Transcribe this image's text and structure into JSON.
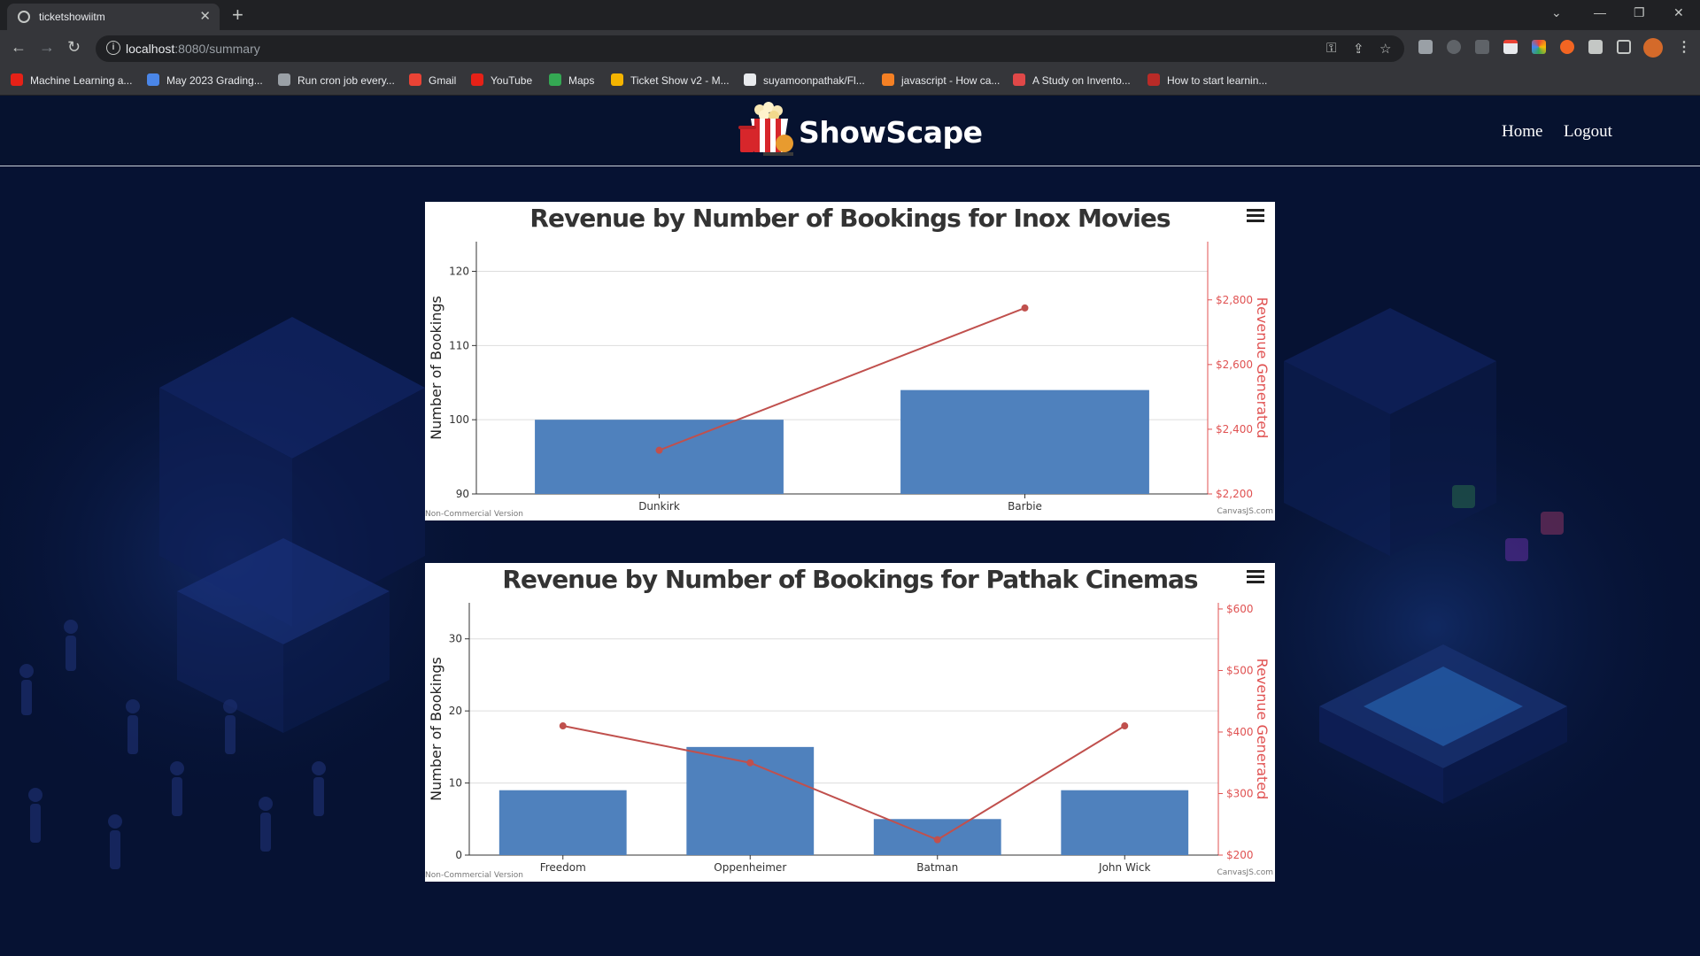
{
  "browser": {
    "tab_title": "ticketshowiitm",
    "url_host": "localhost",
    "url_rest": ":8080/summary",
    "bookmarks": [
      {
        "label": "Machine Learning a...",
        "color": "#e62117"
      },
      {
        "label": "May 2023 Grading...",
        "color": "#4a86e8"
      },
      {
        "label": "Run cron job every...",
        "color": "#9aa0a6"
      },
      {
        "label": "Gmail",
        "color": "#ea4335"
      },
      {
        "label": "YouTube",
        "color": "#e62117"
      },
      {
        "label": "Maps",
        "color": "#34a853"
      },
      {
        "label": "Ticket Show v2 - M...",
        "color": "#f4b400"
      },
      {
        "label": "suyamoonpathak/Fl...",
        "color": "#e8eaed"
      },
      {
        "label": "javascript - How ca...",
        "color": "#f48024"
      },
      {
        "label": "A Study on Invento...",
        "color": "#e04848"
      },
      {
        "label": "How to start learnin...",
        "color": "#b92b27"
      }
    ]
  },
  "site": {
    "brand": "ShowScape",
    "nav": {
      "home": "Home",
      "logout": "Logout"
    }
  },
  "chart_data": [
    {
      "type": "bar",
      "title": "Revenue by Number of Bookings for Inox Movies",
      "categories": [
        "Dunkirk",
        "Barbie"
      ],
      "series": [
        {
          "type": "bar",
          "axis": "left",
          "values": [
            100,
            104
          ]
        },
        {
          "type": "line",
          "axis": "right",
          "values": [
            2335,
            2775
          ]
        }
      ],
      "ylabel": "Number of Bookings",
      "ylabel_right": "Revenue Generated",
      "ylim": [
        90,
        124
      ],
      "yticks": [
        90,
        100,
        110,
        120
      ],
      "ylim_right": [
        2200,
        2980
      ],
      "yticks_right": [
        2200,
        2400,
        2600,
        2800
      ],
      "yticks_right_labels": [
        "$2,200",
        "$2,400",
        "$2,600",
        "$2,800"
      ],
      "grid": true,
      "colors": {
        "bar": "#4f81bd",
        "line": "#c0504d",
        "right_axis": "#e05252"
      },
      "credit_left": "Non-Commercial Version",
      "credit_right": "CanvasJS.com"
    },
    {
      "type": "bar",
      "title": "Revenue by Number of Bookings for Pathak Cinemas",
      "categories": [
        "Freedom",
        "Oppenheimer",
        "Batman",
        "John Wick"
      ],
      "series": [
        {
          "type": "bar",
          "axis": "left",
          "values": [
            9,
            15,
            5,
            9
          ]
        },
        {
          "type": "line",
          "axis": "right",
          "values": [
            410,
            350,
            225,
            410
          ]
        }
      ],
      "ylabel": "Number of Bookings",
      "ylabel_right": "Revenue Generated",
      "ylim": [
        0,
        35
      ],
      "yticks": [
        0,
        10,
        20,
        30
      ],
      "ylim_right": [
        200,
        610
      ],
      "yticks_right": [
        200,
        300,
        400,
        500,
        600
      ],
      "yticks_right_labels": [
        "$200",
        "$300",
        "$400",
        "$500",
        "$600"
      ],
      "grid": true,
      "colors": {
        "bar": "#4f81bd",
        "line": "#c0504d",
        "right_axis": "#e05252"
      },
      "credit_left": "Non-Commercial Version",
      "credit_right": "CanvasJS.com"
    }
  ]
}
